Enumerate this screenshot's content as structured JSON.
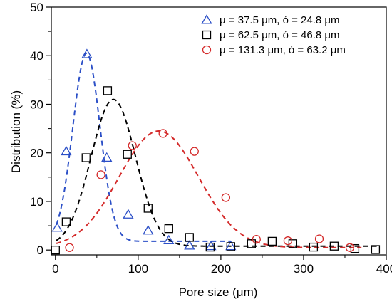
{
  "chart_data": {
    "type": "scatter",
    "title": "",
    "xlabel": "Pore size (μm)",
    "ylabel": "Distribution (%)",
    "xlim": [
      -5,
      400
    ],
    "ylim": [
      -1,
      50
    ],
    "xticks": [
      0,
      100,
      200,
      300,
      400
    ],
    "yticks": [
      0,
      10,
      20,
      30,
      40,
      50
    ],
    "grid": false,
    "legend_position": "top-right",
    "series": [
      {
        "name": "μ = 37.5 μm, ó = 24.8 μm",
        "marker": "triangle",
        "color": "#2b4fc7",
        "points": [
          [
            2,
            4.6
          ],
          [
            13,
            20.3
          ],
          [
            38,
            40.3
          ],
          [
            62,
            19.0
          ],
          [
            88,
            7.3
          ],
          [
            112,
            4.0
          ],
          [
            137,
            2.0
          ],
          [
            162,
            0.9
          ],
          [
            188,
            0.8
          ],
          [
            212,
            0.8
          ]
        ],
        "fit": {
          "type": "gaussian",
          "peak": 40.5,
          "center": 37.5,
          "sigma": 16.5,
          "baseline": 1.8,
          "x_range": [
            1,
            212
          ]
        }
      },
      {
        "name": "μ  = 62.5 μm, ó = 46.8 μm",
        "marker": "square",
        "color": "#000000",
        "points": [
          [
            0,
            0.0
          ],
          [
            13,
            5.8
          ],
          [
            37,
            19.0
          ],
          [
            63,
            32.8
          ],
          [
            87,
            19.7
          ],
          [
            112,
            8.6
          ],
          [
            137,
            4.4
          ],
          [
            162,
            2.6
          ],
          [
            187,
            0.6
          ],
          [
            212,
            0.7
          ],
          [
            237,
            1.3
          ],
          [
            262,
            1.8
          ],
          [
            287,
            1.3
          ],
          [
            312,
            0.6
          ],
          [
            337,
            0.8
          ],
          [
            362,
            0.3
          ],
          [
            387,
            0.1
          ]
        ],
        "fit": {
          "type": "gaussian",
          "peak": 31.0,
          "center": 70.0,
          "sigma": 27.0,
          "baseline": 0.8,
          "x_range": [
            1,
            390
          ]
        }
      },
      {
        "name": "μ  = 131.3 μm, ó = 63.2 μm",
        "marker": "circle",
        "color": "#d42a2a",
        "points": [
          [
            17,
            0.5
          ],
          [
            55,
            15.5
          ],
          [
            93,
            21.5
          ],
          [
            130,
            24.0
          ],
          [
            168,
            20.3
          ],
          [
            206,
            10.8
          ],
          [
            243,
            2.2
          ],
          [
            281,
            1.9
          ],
          [
            319,
            2.3
          ],
          [
            356,
            0.5
          ]
        ],
        "fit": {
          "type": "gaussian",
          "peak": 24.5,
          "center": 125.0,
          "sigma": 48.0,
          "baseline": 0.5,
          "x_range": [
            1,
            370
          ]
        }
      }
    ]
  }
}
